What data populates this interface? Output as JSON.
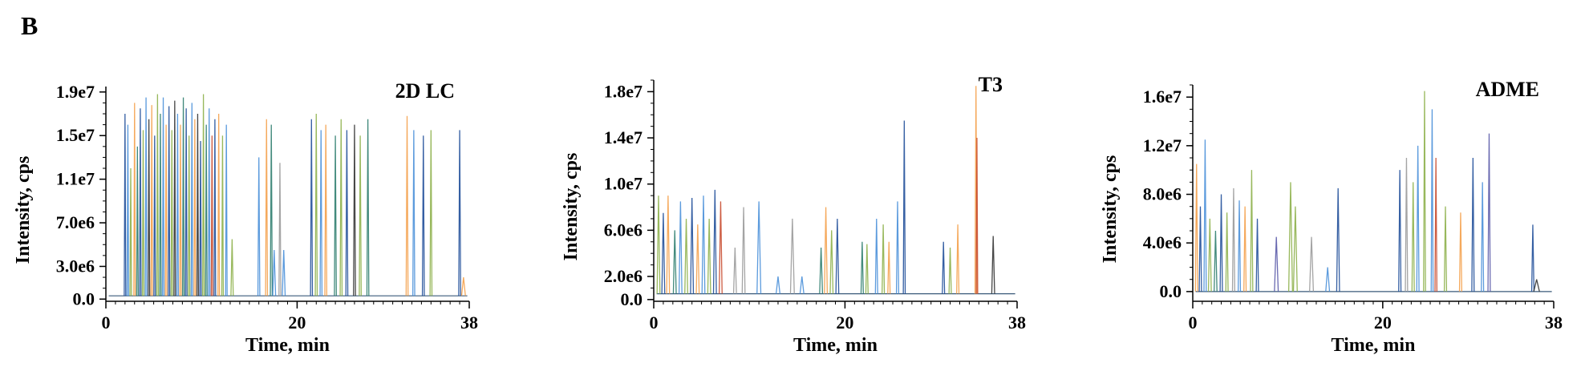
{
  "panel_label": "B",
  "colors": [
    "#1f4e99",
    "#4a90d9",
    "#f4a04a",
    "#8db04a",
    "#2e7d6e",
    "#9a9a9a",
    "#5a5aa8",
    "#c84a2e",
    "#333333"
  ],
  "chart_data": [
    {
      "type": "line",
      "title": "2D LC",
      "xlabel": "Time, min",
      "ylabel": "Intensity, cps",
      "xlim": [
        0,
        38
      ],
      "ylim": [
        -200000,
        19500000
      ],
      "xticks": [
        0,
        20,
        38
      ],
      "xtick_labels": [
        "0",
        "20",
        "38"
      ],
      "yticks": [
        0,
        3000000,
        7000000,
        11000000,
        15000000,
        19000000
      ],
      "ytick_labels": [
        "0.0",
        "3.0e6",
        "7.0e6",
        "1.1e7",
        "1.5e7",
        "1.9e7"
      ],
      "baseline": 300000,
      "grid": false,
      "legend": "none",
      "peaks": [
        {
          "x": 2.0,
          "y": 17000000,
          "w": 0.08,
          "c": 0
        },
        {
          "x": 2.3,
          "y": 16000000,
          "w": 0.08,
          "c": 1
        },
        {
          "x": 2.6,
          "y": 12000000,
          "w": 0.08,
          "c": 3
        },
        {
          "x": 3.0,
          "y": 18000000,
          "w": 0.08,
          "c": 2
        },
        {
          "x": 3.3,
          "y": 14000000,
          "w": 0.08,
          "c": 4
        },
        {
          "x": 3.6,
          "y": 17500000,
          "w": 0.08,
          "c": 0
        },
        {
          "x": 3.9,
          "y": 15500000,
          "w": 0.08,
          "c": 3
        },
        {
          "x": 4.2,
          "y": 18500000,
          "w": 0.08,
          "c": 1
        },
        {
          "x": 4.5,
          "y": 16500000,
          "w": 0.08,
          "c": 8
        },
        {
          "x": 4.8,
          "y": 17800000,
          "w": 0.08,
          "c": 2
        },
        {
          "x": 5.1,
          "y": 15000000,
          "w": 0.08,
          "c": 0
        },
        {
          "x": 5.4,
          "y": 18800000,
          "w": 0.08,
          "c": 3
        },
        {
          "x": 5.7,
          "y": 17000000,
          "w": 0.08,
          "c": 4
        },
        {
          "x": 6.0,
          "y": 18500000,
          "w": 0.08,
          "c": 1
        },
        {
          "x": 6.3,
          "y": 16000000,
          "w": 0.08,
          "c": 2
        },
        {
          "x": 6.6,
          "y": 17700000,
          "w": 0.08,
          "c": 0
        },
        {
          "x": 6.9,
          "y": 15500000,
          "w": 0.08,
          "c": 3
        },
        {
          "x": 7.2,
          "y": 18200000,
          "w": 0.08,
          "c": 8
        },
        {
          "x": 7.5,
          "y": 17000000,
          "w": 0.08,
          "c": 1
        },
        {
          "x": 7.8,
          "y": 16000000,
          "w": 0.08,
          "c": 2
        },
        {
          "x": 8.1,
          "y": 18500000,
          "w": 0.08,
          "c": 4
        },
        {
          "x": 8.4,
          "y": 17500000,
          "w": 0.08,
          "c": 0
        },
        {
          "x": 8.7,
          "y": 15000000,
          "w": 0.08,
          "c": 3
        },
        {
          "x": 9.0,
          "y": 18000000,
          "w": 0.08,
          "c": 1
        },
        {
          "x": 9.3,
          "y": 16500000,
          "w": 0.08,
          "c": 2
        },
        {
          "x": 9.6,
          "y": 17000000,
          "w": 0.08,
          "c": 8
        },
        {
          "x": 9.9,
          "y": 14500000,
          "w": 0.08,
          "c": 0
        },
        {
          "x": 10.2,
          "y": 18800000,
          "w": 0.08,
          "c": 3
        },
        {
          "x": 10.5,
          "y": 16000000,
          "w": 0.08,
          "c": 4
        },
        {
          "x": 10.8,
          "y": 17500000,
          "w": 0.08,
          "c": 1
        },
        {
          "x": 11.1,
          "y": 15000000,
          "w": 0.08,
          "c": 7
        },
        {
          "x": 11.4,
          "y": 16500000,
          "w": 0.08,
          "c": 0
        },
        {
          "x": 11.8,
          "y": 17000000,
          "w": 0.08,
          "c": 2
        },
        {
          "x": 12.2,
          "y": 15000000,
          "w": 0.08,
          "c": 3
        },
        {
          "x": 12.6,
          "y": 16000000,
          "w": 0.08,
          "c": 1
        },
        {
          "x": 13.2,
          "y": 5500000,
          "w": 0.12,
          "c": 3
        },
        {
          "x": 16.0,
          "y": 13000000,
          "w": 0.1,
          "c": 1
        },
        {
          "x": 16.8,
          "y": 16500000,
          "w": 0.1,
          "c": 2
        },
        {
          "x": 17.3,
          "y": 16000000,
          "w": 0.1,
          "c": 4
        },
        {
          "x": 17.6,
          "y": 4500000,
          "w": 0.15,
          "c": 1
        },
        {
          "x": 18.2,
          "y": 12500000,
          "w": 0.1,
          "c": 5
        },
        {
          "x": 18.6,
          "y": 4500000,
          "w": 0.15,
          "c": 1
        },
        {
          "x": 21.5,
          "y": 16500000,
          "w": 0.1,
          "c": 0
        },
        {
          "x": 22.0,
          "y": 17000000,
          "w": 0.1,
          "c": 3
        },
        {
          "x": 22.5,
          "y": 15500000,
          "w": 0.1,
          "c": 1
        },
        {
          "x": 23.0,
          "y": 16000000,
          "w": 0.1,
          "c": 2
        },
        {
          "x": 24.0,
          "y": 15000000,
          "w": 0.1,
          "c": 4
        },
        {
          "x": 24.6,
          "y": 16500000,
          "w": 0.1,
          "c": 3
        },
        {
          "x": 25.2,
          "y": 15500000,
          "w": 0.1,
          "c": 0
        },
        {
          "x": 26.0,
          "y": 16000000,
          "w": 0.1,
          "c": 8
        },
        {
          "x": 26.6,
          "y": 15000000,
          "w": 0.1,
          "c": 3
        },
        {
          "x": 27.4,
          "y": 16500000,
          "w": 0.1,
          "c": 4
        },
        {
          "x": 31.5,
          "y": 16800000,
          "w": 0.1,
          "c": 2
        },
        {
          "x": 32.2,
          "y": 15500000,
          "w": 0.1,
          "c": 1
        },
        {
          "x": 33.2,
          "y": 15000000,
          "w": 0.1,
          "c": 0
        },
        {
          "x": 34.0,
          "y": 15500000,
          "w": 0.1,
          "c": 3
        },
        {
          "x": 37.0,
          "y": 15500000,
          "w": 0.1,
          "c": 0
        },
        {
          "x": 37.4,
          "y": 2000000,
          "w": 0.2,
          "c": 2
        }
      ]
    },
    {
      "type": "line",
      "title": "T3",
      "xlabel": "Time, min",
      "ylabel": "Intensity, cps",
      "xlim": [
        0,
        38
      ],
      "ylim": [
        -150000,
        19000000
      ],
      "xticks": [
        0,
        20,
        38
      ],
      "xtick_labels": [
        "0",
        "20",
        "38"
      ],
      "yticks": [
        0,
        2000000,
        6000000,
        10000000,
        14000000,
        18000000
      ],
      "ytick_labels": [
        "0.0",
        "2.0e6",
        "6.0e6",
        "1.0e7",
        "1.4e7",
        "1.8e7"
      ],
      "baseline": 500000,
      "grid": false,
      "legend": "none",
      "peaks": [
        {
          "x": 0.5,
          "y": 9000000,
          "w": 0.15,
          "c": 3
        },
        {
          "x": 1.0,
          "y": 7500000,
          "w": 0.15,
          "c": 0
        },
        {
          "x": 1.5,
          "y": 9000000,
          "w": 0.15,
          "c": 2
        },
        {
          "x": 2.2,
          "y": 6000000,
          "w": 0.15,
          "c": 4
        },
        {
          "x": 2.8,
          "y": 8500000,
          "w": 0.15,
          "c": 1
        },
        {
          "x": 3.4,
          "y": 7000000,
          "w": 0.15,
          "c": 3
        },
        {
          "x": 4.0,
          "y": 8800000,
          "w": 0.15,
          "c": 0
        },
        {
          "x": 4.6,
          "y": 6500000,
          "w": 0.15,
          "c": 2
        },
        {
          "x": 5.2,
          "y": 9000000,
          "w": 0.15,
          "c": 1
        },
        {
          "x": 5.8,
          "y": 7000000,
          "w": 0.15,
          "c": 3
        },
        {
          "x": 6.4,
          "y": 9500000,
          "w": 0.15,
          "c": 0
        },
        {
          "x": 7.0,
          "y": 8500000,
          "w": 0.15,
          "c": 7
        },
        {
          "x": 8.5,
          "y": 4500000,
          "w": 0.15,
          "c": 5
        },
        {
          "x": 9.4,
          "y": 8000000,
          "w": 0.15,
          "c": 5
        },
        {
          "x": 11.0,
          "y": 8500000,
          "w": 0.2,
          "c": 1
        },
        {
          "x": 13.0,
          "y": 2000000,
          "w": 0.2,
          "c": 1
        },
        {
          "x": 14.5,
          "y": 7000000,
          "w": 0.2,
          "c": 5
        },
        {
          "x": 15.5,
          "y": 2000000,
          "w": 0.2,
          "c": 1
        },
        {
          "x": 17.5,
          "y": 4500000,
          "w": 0.15,
          "c": 4
        },
        {
          "x": 18.0,
          "y": 8000000,
          "w": 0.15,
          "c": 2
        },
        {
          "x": 18.6,
          "y": 6000000,
          "w": 0.15,
          "c": 3
        },
        {
          "x": 19.2,
          "y": 7000000,
          "w": 0.15,
          "c": 0
        },
        {
          "x": 21.8,
          "y": 5000000,
          "w": 0.12,
          "c": 4
        },
        {
          "x": 22.3,
          "y": 4800000,
          "w": 0.12,
          "c": 3
        },
        {
          "x": 23.3,
          "y": 7000000,
          "w": 0.12,
          "c": 1
        },
        {
          "x": 24.0,
          "y": 6500000,
          "w": 0.12,
          "c": 3
        },
        {
          "x": 24.6,
          "y": 5000000,
          "w": 0.12,
          "c": 2
        },
        {
          "x": 25.5,
          "y": 8500000,
          "w": 0.12,
          "c": 1
        },
        {
          "x": 26.2,
          "y": 15500000,
          "w": 0.1,
          "c": 0
        },
        {
          "x": 30.3,
          "y": 5000000,
          "w": 0.12,
          "c": 0
        },
        {
          "x": 31.0,
          "y": 4500000,
          "w": 0.12,
          "c": 3
        },
        {
          "x": 31.8,
          "y": 6500000,
          "w": 0.12,
          "c": 2
        },
        {
          "x": 33.7,
          "y": 18500000,
          "w": 0.1,
          "c": 2
        },
        {
          "x": 33.8,
          "y": 14000000,
          "w": 0.08,
          "c": 7
        },
        {
          "x": 35.5,
          "y": 5500000,
          "w": 0.15,
          "c": 8
        }
      ]
    },
    {
      "type": "line",
      "title": "ADME",
      "xlabel": "Time, min",
      "ylabel": "Intensity, cps",
      "xlim": [
        0,
        38
      ],
      "ylim": [
        -800000,
        17000000
      ],
      "xticks": [
        0,
        20,
        38
      ],
      "xtick_labels": [
        "0",
        "20",
        "38"
      ],
      "yticks": [
        0,
        4000000,
        8000000,
        12000000,
        16000000
      ],
      "ytick_labels": [
        "0.0",
        "4.0e6",
        "8.0e6",
        "1.2e7",
        "1.6e7"
      ],
      "baseline": 0,
      "grid": false,
      "legend": "none",
      "peaks": [
        {
          "x": 0.4,
          "y": 10500000,
          "w": 0.12,
          "c": 2
        },
        {
          "x": 0.8,
          "y": 7000000,
          "w": 0.12,
          "c": 0
        },
        {
          "x": 1.3,
          "y": 12500000,
          "w": 0.12,
          "c": 1
        },
        {
          "x": 1.8,
          "y": 6000000,
          "w": 0.15,
          "c": 3
        },
        {
          "x": 2.4,
          "y": 5000000,
          "w": 0.15,
          "c": 4
        },
        {
          "x": 3.0,
          "y": 8000000,
          "w": 0.12,
          "c": 0
        },
        {
          "x": 3.6,
          "y": 6500000,
          "w": 0.12,
          "c": 3
        },
        {
          "x": 4.3,
          "y": 8500000,
          "w": 0.12,
          "c": 5
        },
        {
          "x": 4.9,
          "y": 7500000,
          "w": 0.12,
          "c": 1
        },
        {
          "x": 5.5,
          "y": 7000000,
          "w": 0.12,
          "c": 2
        },
        {
          "x": 6.2,
          "y": 10000000,
          "w": 0.12,
          "c": 3
        },
        {
          "x": 6.8,
          "y": 6000000,
          "w": 0.12,
          "c": 0
        },
        {
          "x": 8.8,
          "y": 4500000,
          "w": 0.2,
          "c": 6
        },
        {
          "x": 10.3,
          "y": 9000000,
          "w": 0.2,
          "c": 3
        },
        {
          "x": 10.8,
          "y": 7000000,
          "w": 0.2,
          "c": 3
        },
        {
          "x": 12.5,
          "y": 4500000,
          "w": 0.2,
          "c": 5
        },
        {
          "x": 14.2,
          "y": 2000000,
          "w": 0.2,
          "c": 1
        },
        {
          "x": 15.3,
          "y": 8500000,
          "w": 0.15,
          "c": 0
        },
        {
          "x": 21.8,
          "y": 10000000,
          "w": 0.12,
          "c": 0
        },
        {
          "x": 22.5,
          "y": 11000000,
          "w": 0.12,
          "c": 5
        },
        {
          "x": 23.2,
          "y": 9000000,
          "w": 0.12,
          "c": 3
        },
        {
          "x": 23.7,
          "y": 12000000,
          "w": 0.12,
          "c": 1
        },
        {
          "x": 24.4,
          "y": 16500000,
          "w": 0.1,
          "c": 3
        },
        {
          "x": 25.2,
          "y": 15000000,
          "w": 0.1,
          "c": 1
        },
        {
          "x": 25.6,
          "y": 11000000,
          "w": 0.1,
          "c": 7
        },
        {
          "x": 26.6,
          "y": 7000000,
          "w": 0.12,
          "c": 3
        },
        {
          "x": 28.2,
          "y": 6500000,
          "w": 0.12,
          "c": 2
        },
        {
          "x": 29.5,
          "y": 11000000,
          "w": 0.12,
          "c": 0
        },
        {
          "x": 30.5,
          "y": 9000000,
          "w": 0.12,
          "c": 1
        },
        {
          "x": 31.2,
          "y": 13000000,
          "w": 0.12,
          "c": 6
        },
        {
          "x": 35.8,
          "y": 5500000,
          "w": 0.12,
          "c": 0
        },
        {
          "x": 36.2,
          "y": 1000000,
          "w": 0.3,
          "c": 8
        }
      ]
    }
  ]
}
